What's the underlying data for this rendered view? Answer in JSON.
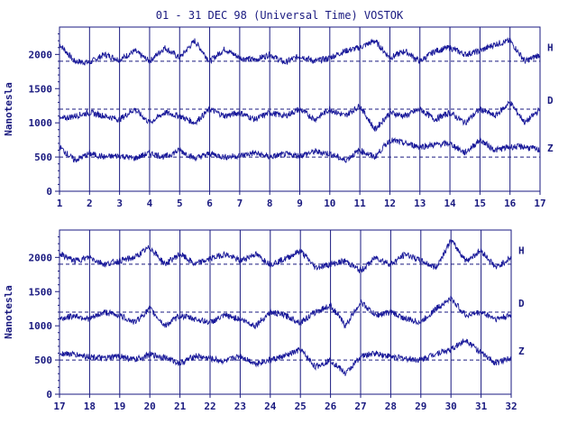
{
  "title": "01 - 31 DEC 98 (Universal Time) VOSTOK",
  "colors": {
    "ink": "#1a1a80",
    "trace": "#1a1a9a",
    "background": "#ffffff"
  },
  "chart_data": [
    {
      "type": "line",
      "ylabel": "Nanotesla",
      "ylim": [
        0,
        2400
      ],
      "yticks": [
        0,
        500,
        1000,
        1500,
        2000
      ],
      "xlim": [
        1,
        17
      ],
      "xticks": [
        "1",
        "2",
        "3",
        "4",
        "5",
        "6",
        "7",
        "8",
        "9",
        "10",
        "11",
        "12",
        "13",
        "14",
        "15",
        "16",
        "17"
      ],
      "baselines": {
        "H": 1900,
        "D": 1200,
        "Z": 500
      },
      "series": [
        {
          "name": "H",
          "x": [
            1,
            1.5,
            2,
            2.5,
            3,
            3.5,
            4,
            4.5,
            5,
            5.5,
            6,
            6.5,
            7,
            7.5,
            8,
            8.5,
            9,
            9.5,
            10,
            10.5,
            11,
            11.5,
            12,
            12.5,
            13,
            13.5,
            14,
            14.5,
            15,
            15.5,
            16,
            16.5,
            17
          ],
          "values": [
            2150,
            1900,
            1880,
            2000,
            1920,
            2050,
            1900,
            2100,
            1950,
            2200,
            1900,
            2080,
            1950,
            1920,
            2000,
            1880,
            1980,
            1900,
            1950,
            2050,
            2100,
            2200,
            1950,
            2050,
            1900,
            2050,
            2100,
            2000,
            2050,
            2150,
            2200,
            1900,
            2000
          ]
        },
        {
          "name": "D",
          "x": [
            1,
            1.5,
            2,
            2.5,
            3,
            3.5,
            4,
            4.5,
            5,
            5.5,
            6,
            6.5,
            7,
            7.5,
            8,
            8.5,
            9,
            9.5,
            10,
            10.5,
            11,
            11.5,
            12,
            12.5,
            13,
            13.5,
            14,
            14.5,
            15,
            15.5,
            16,
            16.5,
            17
          ],
          "values": [
            1050,
            1100,
            1150,
            1100,
            1050,
            1200,
            1000,
            1150,
            1100,
            1000,
            1200,
            1100,
            1150,
            1050,
            1150,
            1100,
            1200,
            1050,
            1200,
            1100,
            1250,
            900,
            1150,
            1100,
            1200,
            1050,
            1150,
            1000,
            1200,
            1100,
            1300,
            1000,
            1200
          ]
        },
        {
          "name": "Z",
          "x": [
            1,
            1.5,
            2,
            2.5,
            3,
            3.5,
            4,
            4.5,
            5,
            5.5,
            6,
            6.5,
            7,
            7.5,
            8,
            8.5,
            9,
            9.5,
            10,
            10.5,
            11,
            11.5,
            12,
            12.5,
            13,
            13.5,
            14,
            14.5,
            15,
            15.5,
            16,
            16.5,
            17
          ],
          "values": [
            650,
            450,
            550,
            500,
            520,
            480,
            560,
            500,
            600,
            480,
            550,
            500,
            520,
            560,
            500,
            540,
            520,
            580,
            550,
            450,
            600,
            500,
            750,
            700,
            650,
            680,
            700,
            560,
            750,
            600,
            650,
            650,
            600
          ]
        }
      ]
    },
    {
      "type": "line",
      "ylabel": "Nanotesla",
      "ylim": [
        0,
        2400
      ],
      "yticks": [
        0,
        500,
        1000,
        1500,
        2000
      ],
      "xlim": [
        17,
        32
      ],
      "xticks": [
        "17",
        "18",
        "19",
        "20",
        "21",
        "22",
        "23",
        "24",
        "25",
        "26",
        "27",
        "28",
        "29",
        "30",
        "31",
        "32"
      ],
      "baselines": {
        "H": 1900,
        "D": 1200,
        "Z": 500
      },
      "series": [
        {
          "name": "H",
          "x": [
            17,
            17.5,
            18,
            18.5,
            19,
            19.5,
            20,
            20.5,
            21,
            21.5,
            22,
            22.5,
            23,
            23.5,
            24,
            24.5,
            25,
            25.5,
            26,
            26.5,
            27,
            27.5,
            28,
            28.5,
            29,
            29.5,
            30,
            30.5,
            31,
            31.5,
            32
          ],
          "values": [
            2050,
            1950,
            2000,
            1900,
            1950,
            2000,
            2150,
            1900,
            2050,
            1900,
            1980,
            2050,
            1950,
            2050,
            1900,
            1980,
            2100,
            1850,
            1900,
            1950,
            1800,
            2000,
            1900,
            2050,
            1950,
            1850,
            2250,
            1950,
            2100,
            1850,
            2000
          ]
        },
        {
          "name": "D",
          "x": [
            17,
            17.5,
            18,
            18.5,
            19,
            19.5,
            20,
            20.5,
            21,
            21.5,
            22,
            22.5,
            23,
            23.5,
            24,
            24.5,
            25,
            25.5,
            26,
            26.5,
            27,
            27.5,
            28,
            28.5,
            29,
            29.5,
            30,
            30.5,
            31,
            31.5,
            32
          ],
          "values": [
            1100,
            1150,
            1100,
            1200,
            1150,
            1050,
            1250,
            1000,
            1150,
            1100,
            1050,
            1150,
            1100,
            1000,
            1200,
            1150,
            1050,
            1200,
            1300,
            1000,
            1350,
            1150,
            1200,
            1100,
            1050,
            1250,
            1400,
            1150,
            1200,
            1100,
            1150
          ]
        },
        {
          "name": "Z",
          "x": [
            17,
            17.5,
            18,
            18.5,
            19,
            19.5,
            20,
            20.5,
            21,
            21.5,
            22,
            22.5,
            23,
            23.5,
            24,
            24.5,
            25,
            25.5,
            26,
            26.5,
            27,
            27.5,
            28,
            28.5,
            29,
            29.5,
            30,
            30.5,
            31,
            31.5,
            32
          ],
          "values": [
            600,
            580,
            550,
            520,
            560,
            500,
            580,
            540,
            450,
            560,
            520,
            480,
            560,
            450,
            500,
            560,
            650,
            400,
            500,
            300,
            550,
            600,
            550,
            520,
            500,
            600,
            650,
            800,
            600,
            450,
            550
          ]
        }
      ]
    }
  ]
}
